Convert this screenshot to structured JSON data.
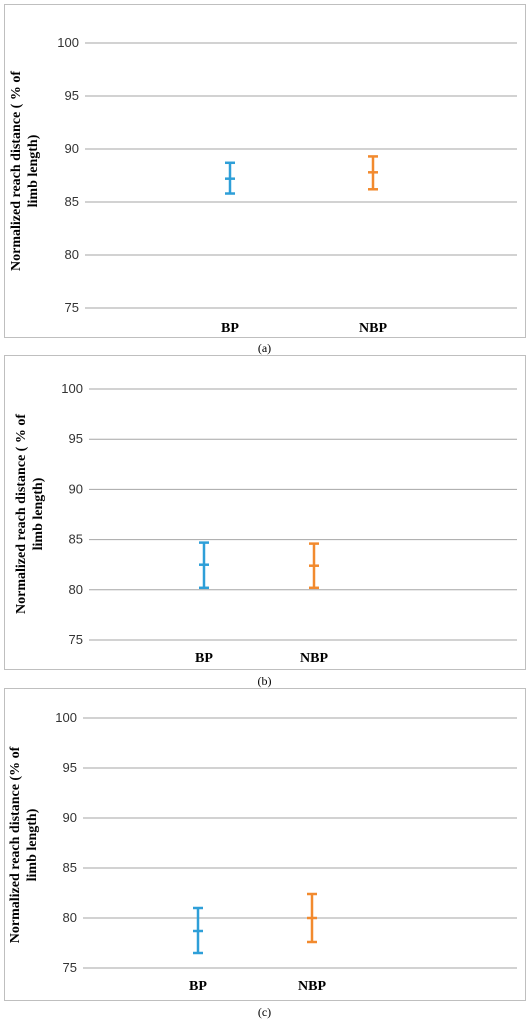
{
  "panels": [
    {
      "caption": "(a)",
      "chart_data": {
        "type": "error-bar",
        "title": "",
        "ylabel": "Normalized reach distance ( % of limb length)",
        "ylabel_lines": [
          "Normalized reach distance ( % of",
          "limb length)"
        ],
        "xlabel": "",
        "ylim": [
          75,
          100
        ],
        "yticks": [
          75,
          80,
          85,
          90,
          95,
          100
        ],
        "grid": true,
        "categories": [
          "BP",
          "NBP"
        ],
        "series": [
          {
            "category": "BP",
            "mean": 87.2,
            "low": 85.8,
            "high": 88.7,
            "color": "#2e9fd8"
          },
          {
            "category": "NBP",
            "mean": 87.8,
            "low": 86.2,
            "high": 89.3,
            "color": "#f28a2e"
          }
        ]
      }
    },
    {
      "caption": "(b)",
      "chart_data": {
        "type": "error-bar",
        "title": "",
        "ylabel": "Normalized reach distance ( % of limb length)",
        "ylabel_lines": [
          "Normalized reach distance ( % of",
          "limb length)"
        ],
        "xlabel": "",
        "ylim": [
          75,
          100
        ],
        "yticks": [
          75,
          80,
          85,
          90,
          95,
          100
        ],
        "grid": true,
        "categories": [
          "BP",
          "NBP"
        ],
        "series": [
          {
            "category": "BP",
            "mean": 82.5,
            "low": 80.2,
            "high": 84.7,
            "color": "#2e9fd8"
          },
          {
            "category": "NBP",
            "mean": 82.4,
            "low": 80.2,
            "high": 84.6,
            "color": "#f28a2e"
          }
        ]
      }
    },
    {
      "caption": "(c)",
      "chart_data": {
        "type": "error-bar",
        "title": "",
        "ylabel": "Normalized reach distance (% of limb length)",
        "ylabel_lines": [
          "Normalized reach  distance (% of",
          "limb length)"
        ],
        "xlabel": "",
        "ylim": [
          75,
          100
        ],
        "yticks": [
          75,
          80,
          85,
          90,
          95,
          100
        ],
        "grid": true,
        "categories": [
          "BP",
          "NBP"
        ],
        "series": [
          {
            "category": "BP",
            "mean": 78.7,
            "low": 76.5,
            "high": 81.0,
            "color": "#2e9fd8"
          },
          {
            "category": "NBP",
            "mean": 80.0,
            "low": 77.6,
            "high": 82.4,
            "color": "#f28a2e"
          }
        ]
      }
    }
  ]
}
